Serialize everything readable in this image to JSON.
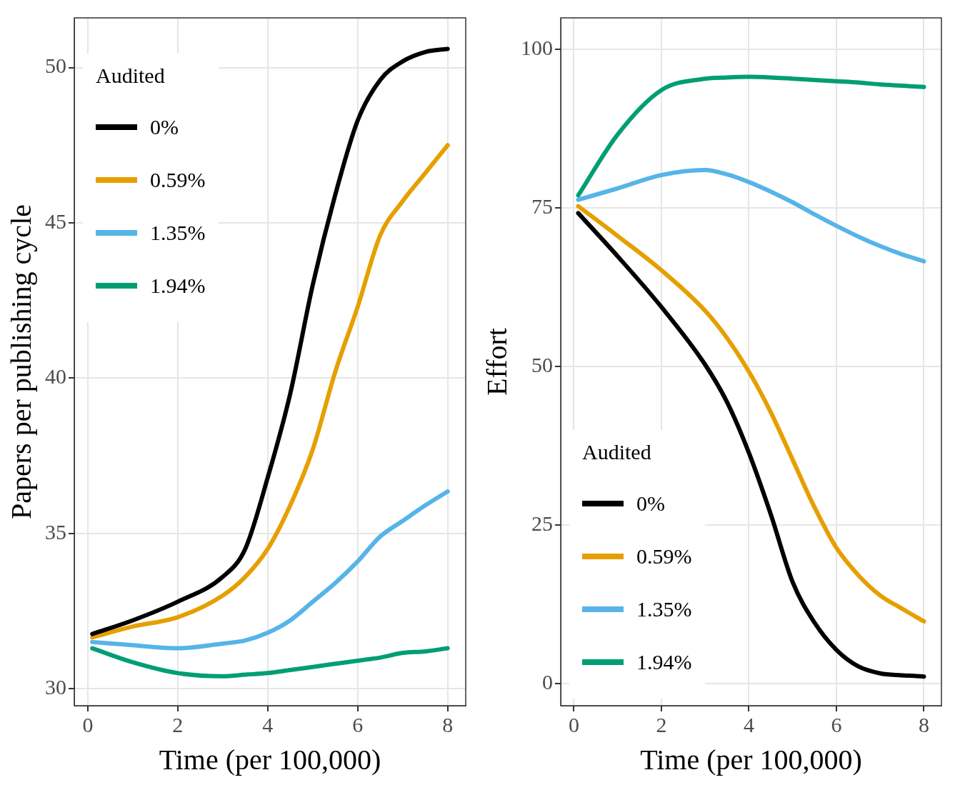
{
  "chart_data": [
    {
      "type": "line",
      "xlabel": "Time (per 100,000)",
      "ylabel": "Papers per publishing cycle",
      "legend_title": "Audited",
      "legend": "top left",
      "grid": true,
      "xlim": [
        -0.3,
        8.4
      ],
      "ylim": [
        29.45,
        51.6
      ],
      "xticks": [
        0,
        2,
        4,
        6,
        8
      ],
      "yticks": [
        30,
        35,
        40,
        45,
        50
      ],
      "x": [
        0.1,
        1,
        2,
        3,
        3.5,
        4,
        4.5,
        5,
        5.5,
        6,
        6.5,
        7,
        7.5,
        8
      ],
      "series": [
        {
          "name": "0%",
          "color": "#000000",
          "values": [
            31.76,
            32.2,
            32.8,
            33.6,
            34.5,
            36.8,
            39.5,
            43,
            45.9,
            48.3,
            49.6,
            50.2,
            50.5,
            50.6
          ]
        },
        {
          "name": "0.59%",
          "color": "#e69f00",
          "values": [
            31.65,
            32.0,
            32.3,
            33.0,
            33.6,
            34.5,
            35.9,
            37.7,
            40.2,
            42.3,
            44.6,
            45.7,
            46.6,
            47.5
          ]
        },
        {
          "name": "1.35%",
          "color": "#56b4e9",
          "values": [
            31.5,
            31.4,
            31.3,
            31.45,
            31.55,
            31.8,
            32.2,
            32.8,
            33.4,
            34.1,
            34.9,
            35.4,
            35.9,
            36.35
          ]
        },
        {
          "name": "1.94%",
          "color": "#009e73",
          "values": [
            31.3,
            30.85,
            30.5,
            30.4,
            30.45,
            30.5,
            30.6,
            30.7,
            30.8,
            30.9,
            31.0,
            31.15,
            31.2,
            31.3
          ]
        }
      ]
    },
    {
      "type": "line",
      "xlabel": "Time (per 100,000)",
      "ylabel": "Effort",
      "legend_title": "Audited",
      "legend": "bottom left",
      "grid": true,
      "xlim": [
        -0.3,
        8.4
      ],
      "ylim": [
        -3.5,
        105
      ],
      "xticks": [
        0,
        2,
        4,
        6,
        8
      ],
      "yticks": [
        0,
        25,
        50,
        75,
        100
      ],
      "x": [
        0.1,
        1,
        2,
        3,
        3.5,
        4,
        4.5,
        5,
        5.5,
        6,
        6.5,
        7,
        7.5,
        8
      ],
      "series": [
        {
          "name": "0%",
          "color": "#000000",
          "values": [
            74.2,
            67.4,
            59.4,
            50.3,
            44.4,
            36.4,
            26.7,
            16,
            9.6,
            5.3,
            2.7,
            1.6,
            1.3,
            1.1
          ]
        },
        {
          "name": "0.59%",
          "color": "#e69f00",
          "values": [
            75.3,
            70.6,
            65.2,
            58.8,
            54.5,
            49.2,
            42.8,
            35.3,
            27.8,
            21.4,
            17.1,
            13.9,
            11.8,
            9.8
          ]
        },
        {
          "name": "1.35%",
          "color": "#56b4e9",
          "values": [
            76.3,
            78.1,
            80.2,
            81,
            80.3,
            79.1,
            77.6,
            75.9,
            74,
            72.2,
            70.5,
            69,
            67.7,
            66.6
          ]
        },
        {
          "name": "1.94%",
          "color": "#009e73",
          "values": [
            77,
            86.6,
            93.6,
            95.4,
            95.6,
            95.7,
            95.6,
            95.4,
            95.2,
            95,
            94.8,
            94.5,
            94.3,
            94.1
          ]
        }
      ]
    }
  ]
}
